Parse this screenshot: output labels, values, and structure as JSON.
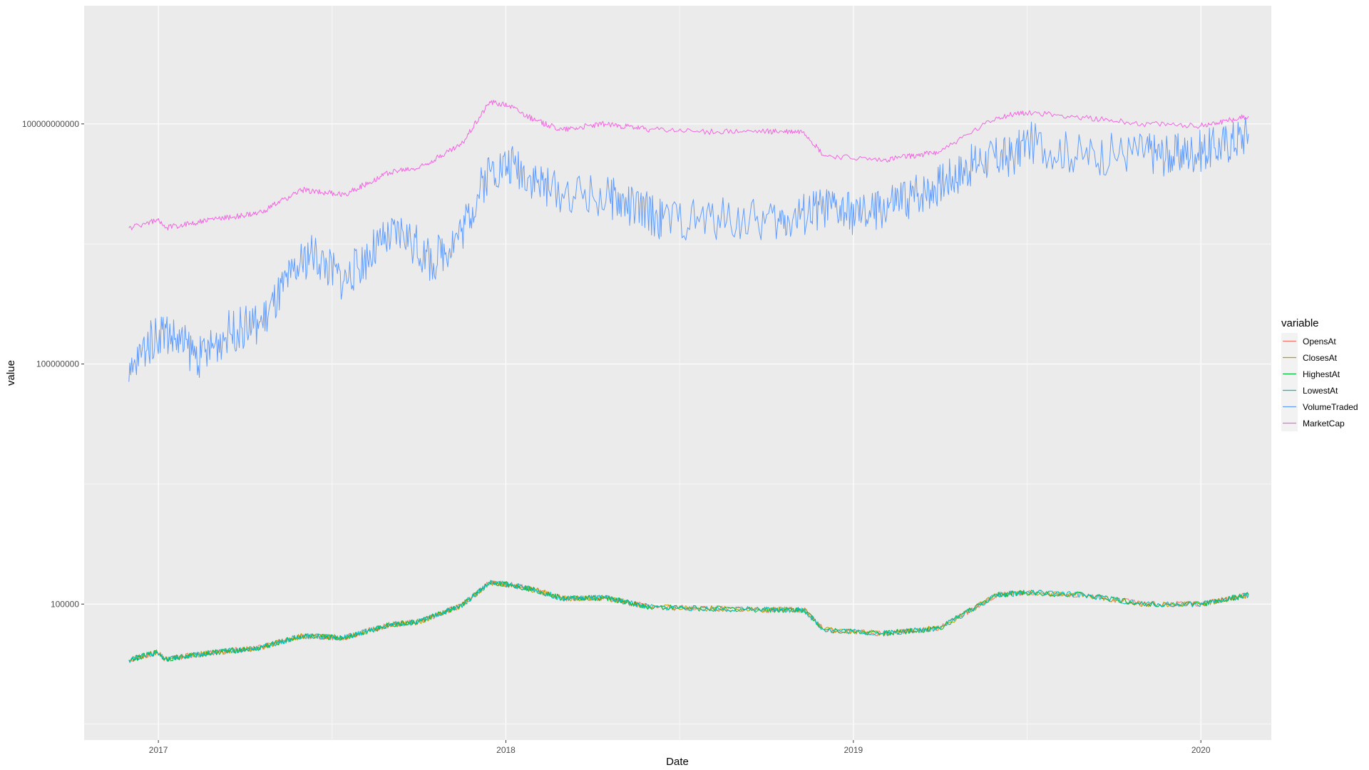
{
  "chart_data": {
    "type": "line",
    "xlabel": "Date",
    "ylabel": "value",
    "y_scale": "log10",
    "ylim": [
      2000,
      3000000000000
    ],
    "xlim": [
      "2016-10-15",
      "2020-03-15"
    ],
    "grid": true,
    "legend_title": "variable",
    "legend_position": "right",
    "x_ticks": [
      {
        "date": "2017-01-01",
        "label": "2017"
      },
      {
        "date": "2018-01-01",
        "label": "2018"
      },
      {
        "date": "2019-01-01",
        "label": "2019"
      },
      {
        "date": "2020-01-01",
        "label": "2020"
      }
    ],
    "y_ticks": [
      {
        "value": 100000,
        "label": "100000"
      },
      {
        "value": 100000000,
        "label": "100000000"
      },
      {
        "value": 100000000000,
        "label": "100000000000"
      }
    ],
    "series": [
      {
        "name": "OpensAt",
        "color": "#F8766D",
        "points": [
          [
            "2016-12-01",
            20000
          ],
          [
            "2016-12-31",
            25000
          ],
          [
            "2017-01-08",
            20500
          ],
          [
            "2017-03-01",
            25000
          ],
          [
            "2017-04-15",
            28000
          ],
          [
            "2017-06-01",
            40000
          ],
          [
            "2017-07-15",
            38000
          ],
          [
            "2017-09-01",
            55000
          ],
          [
            "2017-10-01",
            60000
          ],
          [
            "2017-11-15",
            95000
          ],
          [
            "2017-12-15",
            185000
          ],
          [
            "2018-01-05",
            175000
          ],
          [
            "2018-02-01",
            150000
          ],
          [
            "2018-03-01",
            118000
          ],
          [
            "2018-04-15",
            120000
          ],
          [
            "2018-06-01",
            92000
          ],
          [
            "2018-08-01",
            88000
          ],
          [
            "2018-10-01",
            85000
          ],
          [
            "2018-11-10",
            85000
          ],
          [
            "2018-12-01",
            48000
          ],
          [
            "2019-02-01",
            43000
          ],
          [
            "2019-04-01",
            50000
          ],
          [
            "2019-06-01",
            130000
          ],
          [
            "2019-07-01",
            140000
          ],
          [
            "2019-09-01",
            130000
          ],
          [
            "2019-11-01",
            100000
          ],
          [
            "2020-01-01",
            100000
          ],
          [
            "2020-02-20",
            130000
          ]
        ]
      },
      {
        "name": "ClosesAt",
        "color": "#B79F00",
        "points": [
          [
            "2016-12-01",
            20000
          ],
          [
            "2016-12-31",
            25000
          ],
          [
            "2017-01-08",
            20500
          ],
          [
            "2017-03-01",
            25000
          ],
          [
            "2017-04-15",
            28000
          ],
          [
            "2017-06-01",
            40000
          ],
          [
            "2017-07-15",
            38000
          ],
          [
            "2017-09-01",
            55000
          ],
          [
            "2017-10-01",
            60000
          ],
          [
            "2017-11-15",
            95000
          ],
          [
            "2017-12-15",
            185000
          ],
          [
            "2018-01-05",
            175000
          ],
          [
            "2018-02-01",
            150000
          ],
          [
            "2018-03-01",
            118000
          ],
          [
            "2018-04-15",
            120000
          ],
          [
            "2018-06-01",
            92000
          ],
          [
            "2018-08-01",
            88000
          ],
          [
            "2018-10-01",
            85000
          ],
          [
            "2018-11-10",
            85000
          ],
          [
            "2018-12-01",
            48000
          ],
          [
            "2019-02-01",
            43000
          ],
          [
            "2019-04-01",
            50000
          ],
          [
            "2019-06-01",
            130000
          ],
          [
            "2019-07-01",
            140000
          ],
          [
            "2019-09-01",
            130000
          ],
          [
            "2019-11-01",
            100000
          ],
          [
            "2020-01-01",
            100000
          ],
          [
            "2020-02-20",
            130000
          ]
        ]
      },
      {
        "name": "HighestAt",
        "color": "#00BA38",
        "points": [
          [
            "2016-12-01",
            20000
          ],
          [
            "2016-12-31",
            25000
          ],
          [
            "2017-01-08",
            20500
          ],
          [
            "2017-03-01",
            25000
          ],
          [
            "2017-04-15",
            28000
          ],
          [
            "2017-06-01",
            40000
          ],
          [
            "2017-07-15",
            38000
          ],
          [
            "2017-09-01",
            55000
          ],
          [
            "2017-10-01",
            60000
          ],
          [
            "2017-11-15",
            95000
          ],
          [
            "2017-12-15",
            185000
          ],
          [
            "2018-01-05",
            175000
          ],
          [
            "2018-02-01",
            150000
          ],
          [
            "2018-03-01",
            118000
          ],
          [
            "2018-04-15",
            120000
          ],
          [
            "2018-06-01",
            92000
          ],
          [
            "2018-08-01",
            88000
          ],
          [
            "2018-10-01",
            85000
          ],
          [
            "2018-11-10",
            85000
          ],
          [
            "2018-12-01",
            48000
          ],
          [
            "2019-02-01",
            43000
          ],
          [
            "2019-04-01",
            50000
          ],
          [
            "2019-06-01",
            130000
          ],
          [
            "2019-07-01",
            140000
          ],
          [
            "2019-09-01",
            130000
          ],
          [
            "2019-11-01",
            100000
          ],
          [
            "2020-01-01",
            100000
          ],
          [
            "2020-02-20",
            130000
          ]
        ]
      },
      {
        "name": "LowestAt",
        "color": "#00BFC4",
        "points": [
          [
            "2016-12-01",
            20000
          ],
          [
            "2016-12-31",
            25000
          ],
          [
            "2017-01-08",
            20500
          ],
          [
            "2017-03-01",
            25000
          ],
          [
            "2017-04-15",
            28000
          ],
          [
            "2017-06-01",
            40000
          ],
          [
            "2017-07-15",
            38000
          ],
          [
            "2017-09-01",
            55000
          ],
          [
            "2017-10-01",
            60000
          ],
          [
            "2017-11-15",
            95000
          ],
          [
            "2017-12-15",
            185000
          ],
          [
            "2018-01-05",
            175000
          ],
          [
            "2018-02-01",
            150000
          ],
          [
            "2018-03-01",
            118000
          ],
          [
            "2018-04-15",
            120000
          ],
          [
            "2018-06-01",
            92000
          ],
          [
            "2018-08-01",
            88000
          ],
          [
            "2018-10-01",
            85000
          ],
          [
            "2018-11-10",
            85000
          ],
          [
            "2018-12-01",
            48000
          ],
          [
            "2019-02-01",
            43000
          ],
          [
            "2019-04-01",
            50000
          ],
          [
            "2019-06-01",
            130000
          ],
          [
            "2019-07-01",
            140000
          ],
          [
            "2019-09-01",
            130000
          ],
          [
            "2019-11-01",
            100000
          ],
          [
            "2020-01-01",
            100000
          ],
          [
            "2020-02-20",
            130000
          ]
        ]
      },
      {
        "name": "VolumeTraded",
        "color": "#619CFF",
        "points": [
          [
            "2016-12-01",
            60000000
          ],
          [
            "2016-12-15",
            150000000
          ],
          [
            "2017-01-05",
            270000000
          ],
          [
            "2017-02-15",
            120000000
          ],
          [
            "2017-03-15",
            250000000
          ],
          [
            "2017-04-20",
            330000000
          ],
          [
            "2017-05-20",
            1200000000
          ],
          [
            "2017-06-10",
            2500000000
          ],
          [
            "2017-07-15",
            1100000000
          ],
          [
            "2017-08-20",
            3000000000
          ],
          [
            "2017-09-15",
            4500000000
          ],
          [
            "2017-10-15",
            1800000000
          ],
          [
            "2017-11-15",
            4500000000
          ],
          [
            "2017-12-15",
            27000000000
          ],
          [
            "2018-01-10",
            31000000000
          ],
          [
            "2018-02-15",
            15000000000
          ],
          [
            "2018-04-20",
            12000000000
          ],
          [
            "2018-06-15",
            6500000000
          ],
          [
            "2018-08-15",
            6500000000
          ],
          [
            "2018-10-15",
            6000000000
          ],
          [
            "2018-12-01",
            9000000000
          ],
          [
            "2019-01-10",
            7000000000
          ],
          [
            "2019-03-01",
            12000000000
          ],
          [
            "2019-04-01",
            18000000000
          ],
          [
            "2019-05-15",
            35000000000
          ],
          [
            "2019-06-20",
            40000000000
          ],
          [
            "2019-07-01",
            60000000000
          ],
          [
            "2019-09-01",
            40000000000
          ],
          [
            "2019-11-01",
            45000000000
          ],
          [
            "2019-12-01",
            40000000000
          ],
          [
            "2020-01-15",
            50000000000
          ],
          [
            "2020-02-20",
            75000000000
          ]
        ]
      },
      {
        "name": "MarketCap",
        "color": "#F564E3",
        "points": [
          [
            "2016-12-01",
            5000000000
          ],
          [
            "2016-12-31",
            6300000000
          ],
          [
            "2017-01-08",
            5000000000
          ],
          [
            "2017-03-01",
            6500000000
          ],
          [
            "2017-04-15",
            7500000000
          ],
          [
            "2017-06-01",
            15000000000
          ],
          [
            "2017-07-15",
            13000000000
          ],
          [
            "2017-09-01",
            25000000000
          ],
          [
            "2017-10-01",
            28000000000
          ],
          [
            "2017-11-15",
            55000000000
          ],
          [
            "2017-12-15",
            190000000000
          ],
          [
            "2018-01-05",
            170000000000
          ],
          [
            "2018-02-01",
            110000000000
          ],
          [
            "2018-03-01",
            85000000000
          ],
          [
            "2018-04-15",
            100000000000
          ],
          [
            "2018-06-01",
            85000000000
          ],
          [
            "2018-08-01",
            80000000000
          ],
          [
            "2018-10-01",
            80000000000
          ],
          [
            "2018-11-10",
            80000000000
          ],
          [
            "2018-12-01",
            40000000000
          ],
          [
            "2019-02-01",
            35000000000
          ],
          [
            "2019-04-01",
            45000000000
          ],
          [
            "2019-06-01",
            120000000000
          ],
          [
            "2019-07-01",
            140000000000
          ],
          [
            "2019-09-01",
            120000000000
          ],
          [
            "2019-11-01",
            100000000000
          ],
          [
            "2020-01-01",
            95000000000
          ],
          [
            "2020-02-20",
            125000000000
          ]
        ]
      }
    ]
  }
}
